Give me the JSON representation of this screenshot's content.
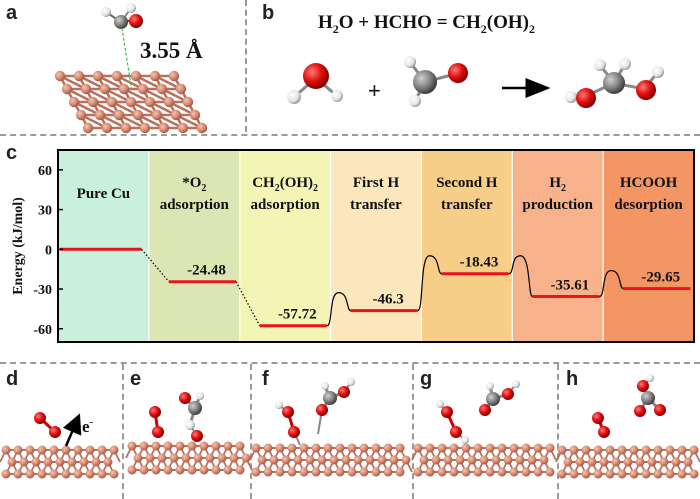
{
  "panels": {
    "a": "a",
    "b": "b",
    "c": "c",
    "d": "d",
    "e": "e",
    "f": "f",
    "g": "g",
    "h": "h"
  },
  "panel_a": {
    "distance_label": "3.55 Å"
  },
  "panel_b": {
    "equation": {
      "lhs_a": "H",
      "lhs_a_sub": "2",
      "lhs_b": "O + HCHO = CH",
      "sub1": "2",
      "mid": "(OH)",
      "sub2": "2"
    },
    "plus": "+"
  },
  "panel_d": {
    "electron_label": "e",
    "electron_sup": "-"
  },
  "chart_data": {
    "type": "energy-profile",
    "ylabel": "Energy (kJ/mol)",
    "ylim": [
      -70,
      75
    ],
    "yticks": [
      60,
      30,
      0,
      -30,
      -60
    ],
    "steps": [
      {
        "label_lines": [
          "Pure Cu"
        ],
        "value": 0,
        "value_label": "",
        "bg": "#c8f0dc"
      },
      {
        "label_lines": [
          "*O2",
          "adsorption"
        ],
        "value": -24.48,
        "value_label": "-24.48",
        "bg": "#dce6b4"
      },
      {
        "label_lines": [
          "CH2(OH)2",
          "adsorption"
        ],
        "value": -57.72,
        "value_label": "-57.72",
        "bg": "#f4f4b4"
      },
      {
        "label_lines": [
          "First H",
          "transfer"
        ],
        "value": -46.3,
        "value_label": "-46.3",
        "bg": "#fce6bc"
      },
      {
        "label_lines": [
          "Second H",
          "transfer"
        ],
        "value": -18.43,
        "value_label": "-18.43",
        "bg": "#f7ce88"
      },
      {
        "label_lines": [
          "H2",
          "production"
        ],
        "value": -35.61,
        "value_label": "-35.61",
        "bg": "#f7b28c"
      },
      {
        "label_lines": [
          "HCOOH",
          "desorption"
        ],
        "value": -29.65,
        "value_label": "-29.65",
        "bg": "#f49664"
      }
    ],
    "colors": {
      "level": "#e8141c",
      "frame": "#000000"
    }
  }
}
